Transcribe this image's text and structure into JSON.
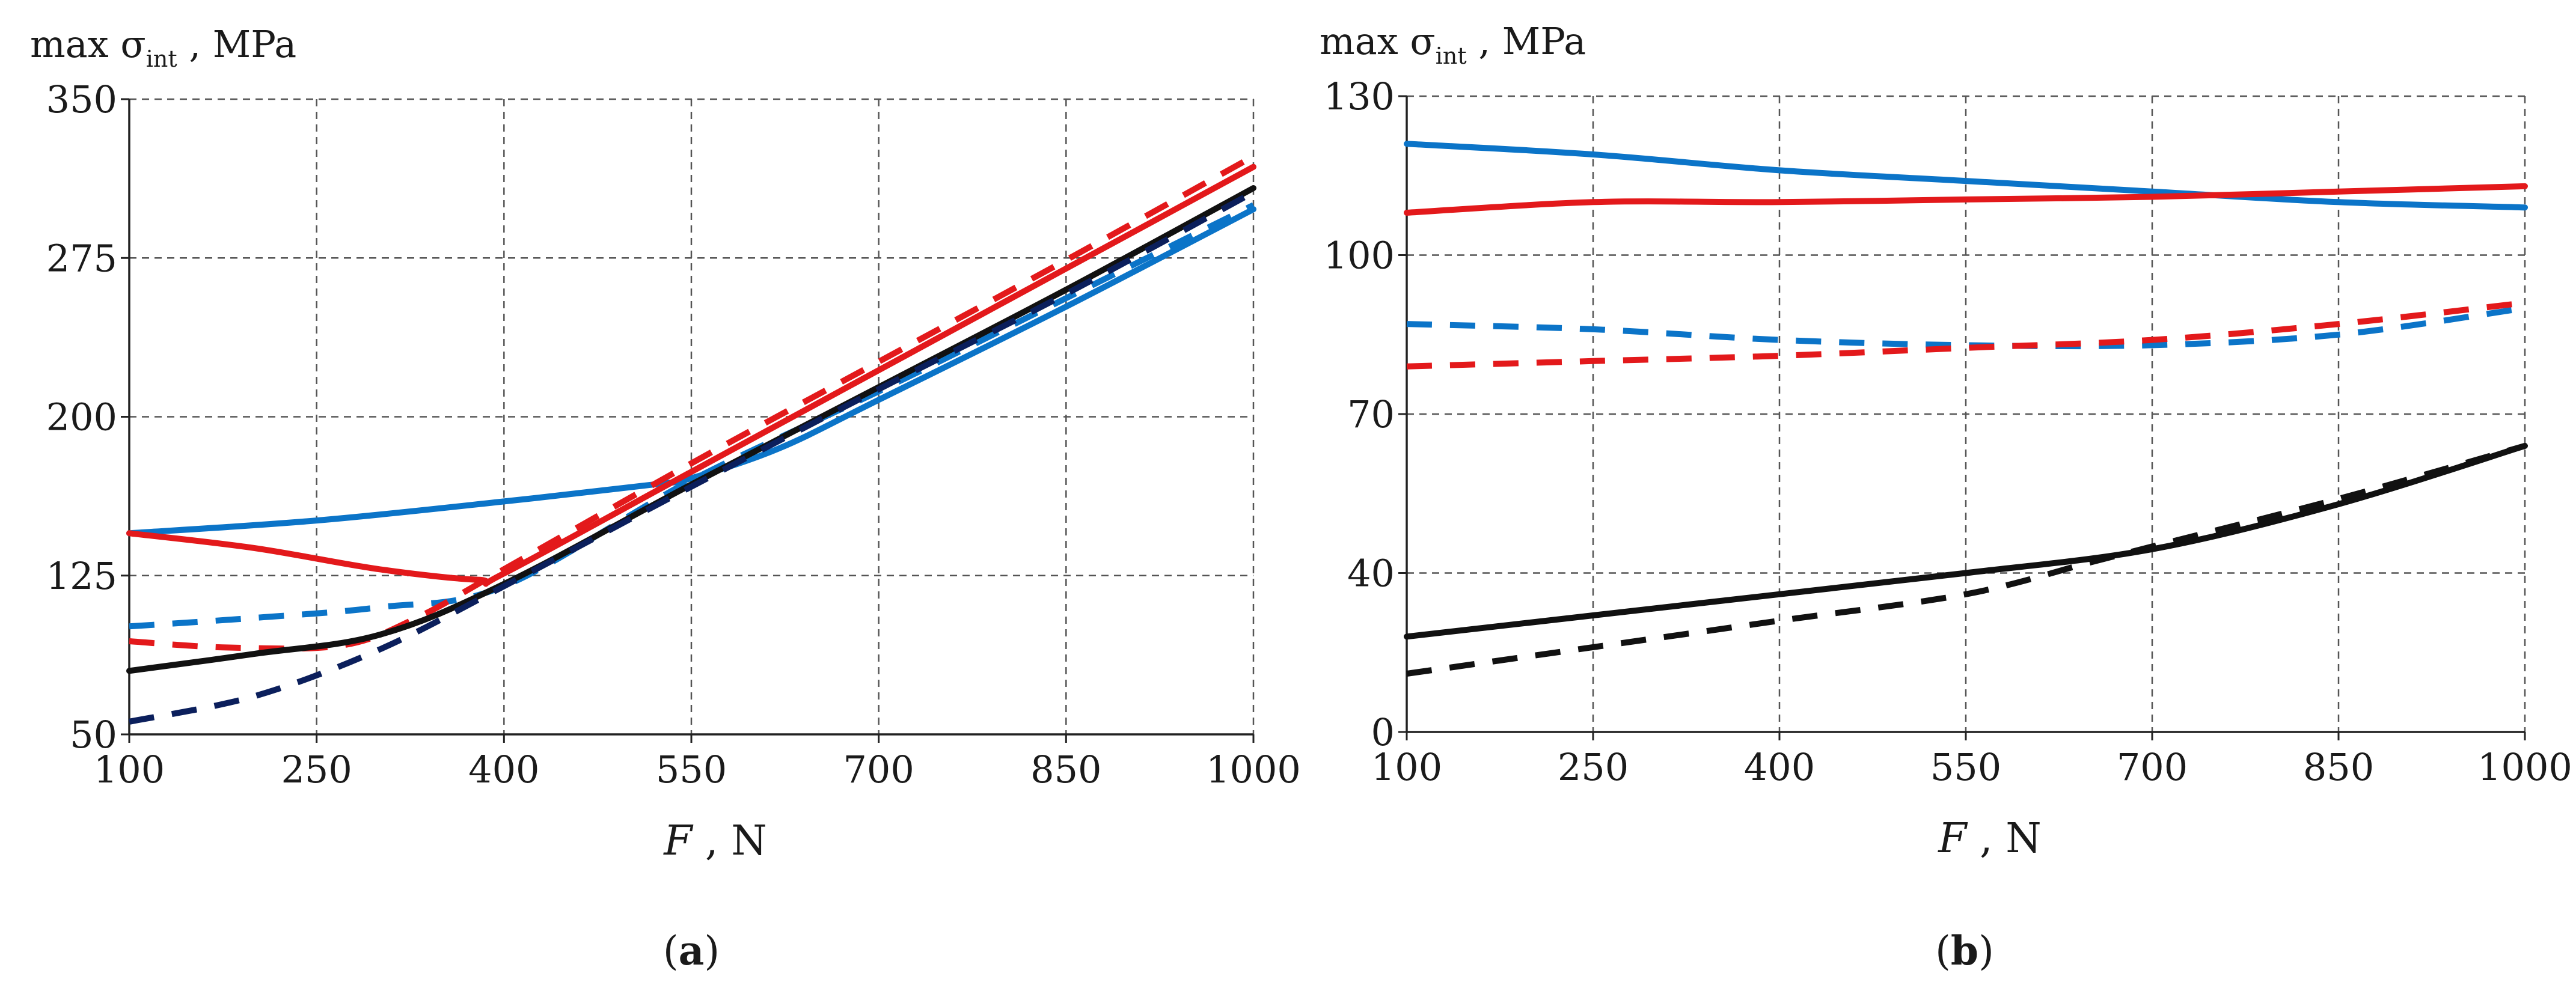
{
  "colors": {
    "red": "#e3191b",
    "blue": "#0b74c8",
    "black": "#111111",
    "navy": "#0b1f5c",
    "grid": "#555555"
  },
  "chart_data": [
    {
      "type": "line",
      "panel": "a",
      "caption_open": "(",
      "caption_letter": "a",
      "caption_close": ")",
      "ylabel_prefix": "max σ",
      "ylabel_sub": "int",
      "ylabel_suffix": " , MPa",
      "xlabel_var": "F",
      "xlabel_unit": " , N",
      "xlim": [
        100,
        1000
      ],
      "ylim": [
        50,
        350
      ],
      "xticks": [
        100,
        250,
        400,
        550,
        700,
        850,
        1000
      ],
      "yticks": [
        50,
        125,
        200,
        275,
        350
      ],
      "grid": true,
      "series": [
        {
          "name": "blue-solid",
          "color": "blue",
          "dashed": false,
          "x": [
            100,
            250,
            400,
            520,
            550,
            620,
            700,
            850,
            1000
          ],
          "y": [
            145,
            151,
            160,
            168,
            171,
            185,
            208,
            252,
            298
          ]
        },
        {
          "name": "red-solid",
          "color": "red",
          "dashed": false,
          "x": [
            100,
            200,
            300,
            380,
            400,
            550,
            700,
            850,
            1000
          ],
          "y": [
            145,
            138,
            128,
            123,
            126,
            174,
            222,
            270,
            318
          ]
        },
        {
          "name": "blue-dashed",
          "color": "blue",
          "dashed": true,
          "x": [
            100,
            200,
            300,
            400,
            550,
            700,
            850,
            1000
          ],
          "y": [
            101,
            105,
            110,
            120,
            170,
            212,
            256,
            300
          ]
        },
        {
          "name": "red-dashed",
          "color": "red",
          "dashed": true,
          "x": [
            100,
            180,
            270,
            330,
            400,
            550,
            700,
            850,
            1000
          ],
          "y": [
            94,
            91,
            92,
            105,
            128,
            178,
            226,
            274,
            323
          ]
        },
        {
          "name": "black-solid",
          "color": "black",
          "dashed": false,
          "x": [
            100,
            200,
            300,
            400,
            550,
            700,
            850,
            1000
          ],
          "y": [
            80,
            88,
            97,
            121,
            168,
            214,
            260,
            308
          ]
        },
        {
          "name": "navy-dashed",
          "color": "navy",
          "dashed": true,
          "x": [
            100,
            200,
            300,
            400,
            550,
            700,
            850,
            1000
          ],
          "y": [
            56,
            68,
            90,
            120,
            167,
            213,
            258,
            306
          ]
        }
      ]
    },
    {
      "type": "line",
      "panel": "b",
      "caption_open": "(",
      "caption_letter": "b",
      "caption_close": ")",
      "ylabel_prefix": "max σ",
      "ylabel_sub": "int",
      "ylabel_suffix": " , MPa",
      "xlabel_var": "F",
      "xlabel_unit": " , N",
      "xlim": [
        100,
        1000
      ],
      "ylim": [
        10,
        130
      ],
      "yaxis_origin_label": "0",
      "xticks": [
        100,
        250,
        400,
        550,
        700,
        850,
        1000
      ],
      "yticks": [
        40,
        70,
        100,
        130
      ],
      "grid": true,
      "series": [
        {
          "name": "blue-solid",
          "color": "blue",
          "dashed": false,
          "x": [
            100,
            250,
            400,
            550,
            700,
            850,
            1000
          ],
          "y": [
            121,
            119,
            116,
            114,
            112,
            110,
            109
          ]
        },
        {
          "name": "red-solid",
          "color": "red",
          "dashed": false,
          "x": [
            100,
            250,
            400,
            550,
            700,
            850,
            1000
          ],
          "y": [
            108,
            110,
            110,
            110.5,
            111,
            112,
            113
          ]
        },
        {
          "name": "blue-dashed",
          "color": "blue",
          "dashed": true,
          "x": [
            100,
            250,
            400,
            550,
            700,
            850,
            1000
          ],
          "y": [
            87,
            86,
            84,
            83,
            83,
            85,
            90
          ]
        },
        {
          "name": "red-dashed",
          "color": "red",
          "dashed": true,
          "x": [
            100,
            250,
            400,
            550,
            700,
            850,
            1000
          ],
          "y": [
            79,
            80,
            81,
            82.5,
            84,
            87,
            91
          ]
        },
        {
          "name": "black-solid",
          "color": "black",
          "dashed": false,
          "x": [
            100,
            250,
            400,
            550,
            700,
            850,
            1000
          ],
          "y": [
            28,
            32,
            36,
            40,
            44.5,
            53,
            64
          ]
        },
        {
          "name": "black-dashed",
          "color": "black",
          "dashed": true,
          "x": [
            100,
            250,
            400,
            550,
            650,
            700,
            850,
            1000
          ],
          "y": [
            21,
            26,
            31,
            36,
            42,
            45,
            54,
            64
          ]
        }
      ]
    }
  ]
}
